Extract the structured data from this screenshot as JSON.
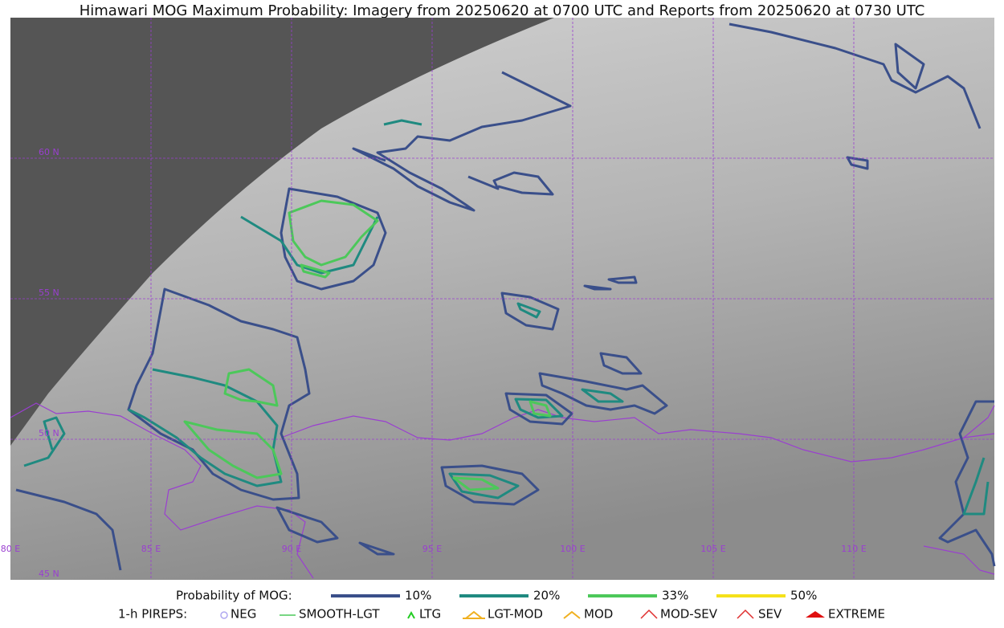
{
  "title": "Himawari MOG Maximum Probability: Imagery from 20250620 at 0700 UTC and Reports from 20250620 at 0730 UTC",
  "map": {
    "lat_labels": [
      "60 N",
      "55 N",
      "50 N",
      "45 N"
    ],
    "lon_labels": [
      "80 E",
      "85 E",
      "90 E",
      "95 E",
      "100 E",
      "105 E",
      "110 E"
    ]
  },
  "legend": {
    "probability": {
      "label": "Probability of MOG:",
      "items": [
        {
          "label": "10%",
          "color": "#3a4f8a"
        },
        {
          "label": "20%",
          "color": "#1f8a80"
        },
        {
          "label": "33%",
          "color": "#4cc85a"
        },
        {
          "label": "50%",
          "color": "#f5e11a"
        }
      ]
    },
    "pireps": {
      "label": "1-h PIREPS:",
      "items": [
        "NEG",
        "SMOOTH-LGT",
        "LTG",
        "LGT-MOD",
        "MOD",
        "MOD-SEV",
        "SEV",
        "EXTREME"
      ]
    }
  }
}
